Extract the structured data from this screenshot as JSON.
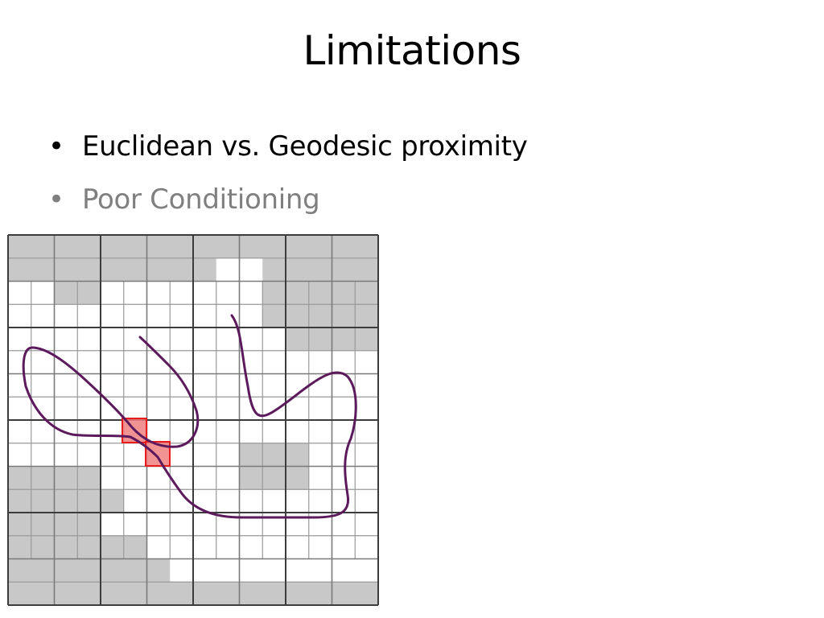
{
  "slide": {
    "title": "Limitations",
    "bullet_marker": "•",
    "bullets": [
      {
        "text": "Euclidean vs. Geodesic proximity",
        "color": "#000000"
      },
      {
        "text": "Poor Conditioning",
        "color": "#7f7f7f"
      }
    ]
  },
  "figure": {
    "description_icon": "adaptive-octree-grid",
    "colors": {
      "empty_cell": "#c8c8c8",
      "active_cell": "#ffffff",
      "grid_line_fine": "#9a9a9a",
      "grid_line_coarse": "#3c3c3c",
      "curve": "#5c1a5c",
      "highlight_fill": "#f08080",
      "highlight_stroke": "#e81c1c"
    }
  }
}
